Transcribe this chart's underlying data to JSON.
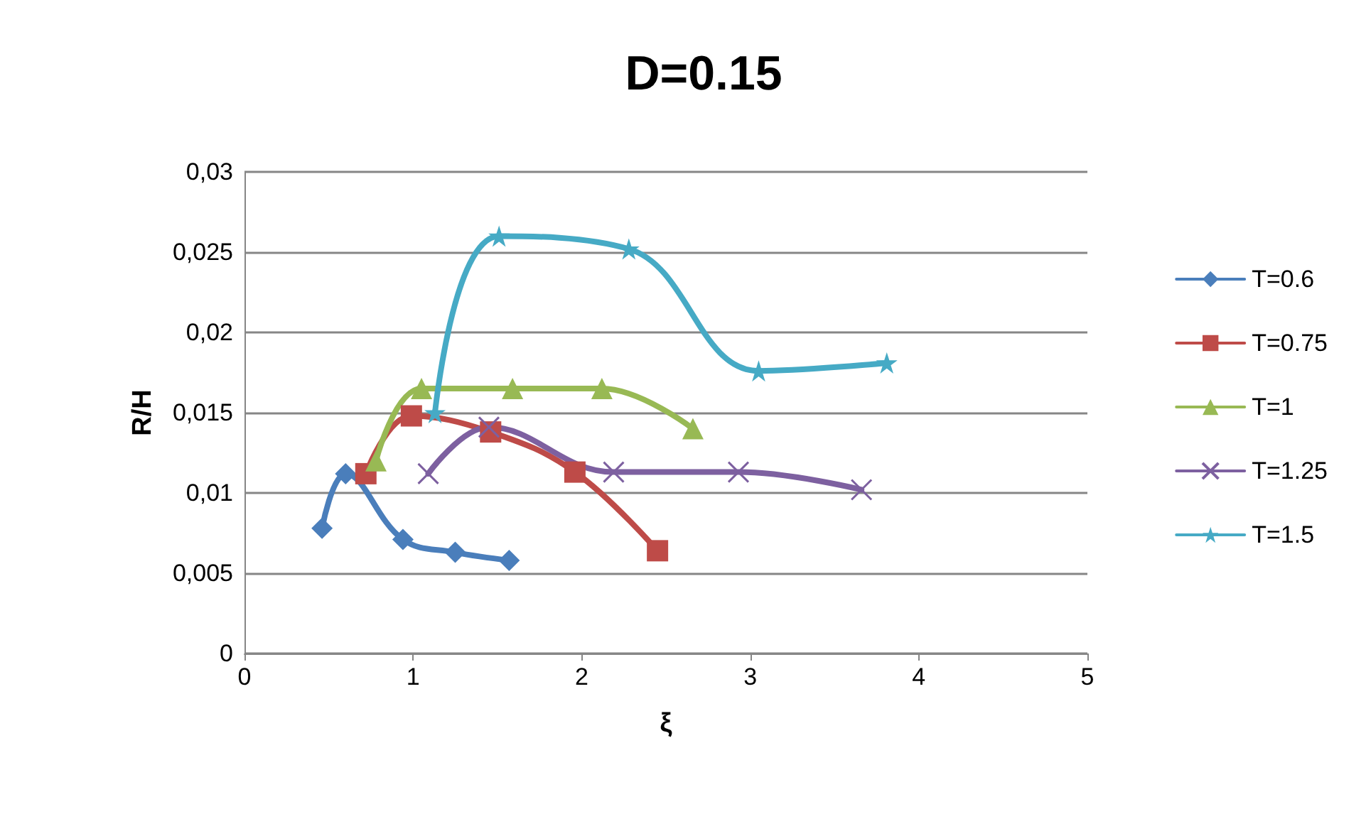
{
  "chart_data": {
    "type": "line",
    "title": "D=0.15",
    "xlabel": "ξ",
    "ylabel": "R/H",
    "xlim": [
      0,
      5
    ],
    "xticks": [
      0,
      1,
      2,
      3,
      4,
      5
    ],
    "ylim": [
      0,
      0.03
    ],
    "yticks": [
      0,
      {
        "value": 0.005,
        "label": "0,005"
      },
      {
        "value": 0.01,
        "label": "0,01"
      },
      {
        "value": 0.015,
        "label": "0,015"
      },
      {
        "value": 0.02,
        "label": "0,02"
      },
      {
        "value": 0.025,
        "label": "0,025"
      },
      {
        "value": 0.03,
        "label": "0,03"
      }
    ],
    "grid": "y",
    "legend": "right",
    "line_style": "solid",
    "series": [
      {
        "name": "T=0.6",
        "color": "#4a7ebb",
        "marker": "diamond",
        "x": [
          0.46,
          0.6,
          0.94,
          1.25,
          1.57
        ],
        "values": [
          0.0078,
          0.0112,
          0.0071,
          0.0063,
          0.0058
        ]
      },
      {
        "name": "T=0.75",
        "color": "#be4b48",
        "marker": "square",
        "x": [
          0.72,
          0.99,
          1.46,
          1.96,
          2.45
        ],
        "values": [
          0.0112,
          0.0148,
          0.0138,
          0.0113,
          0.0064
        ]
      },
      {
        "name": "T=1",
        "color": "#98b954",
        "marker": "triangle",
        "x": [
          0.78,
          1.05,
          1.59,
          2.12,
          2.66
        ],
        "values": [
          0.012,
          0.0165,
          0.0165,
          0.0165,
          0.014
        ]
      },
      {
        "name": "T=1.25",
        "color": "#7d60a0",
        "marker": "cross",
        "x": [
          1.09,
          1.45,
          2.19,
          2.93,
          3.66
        ],
        "values": [
          0.0112,
          0.0141,
          0.0113,
          0.0113,
          0.0102
        ]
      },
      {
        "name": "T=1.5",
        "color": "#46aac5",
        "marker": "star",
        "x": [
          1.13,
          1.51,
          2.28,
          3.05,
          3.81
        ],
        "values": [
          0.015,
          0.026,
          0.0252,
          0.0176,
          0.0181
        ]
      }
    ]
  }
}
